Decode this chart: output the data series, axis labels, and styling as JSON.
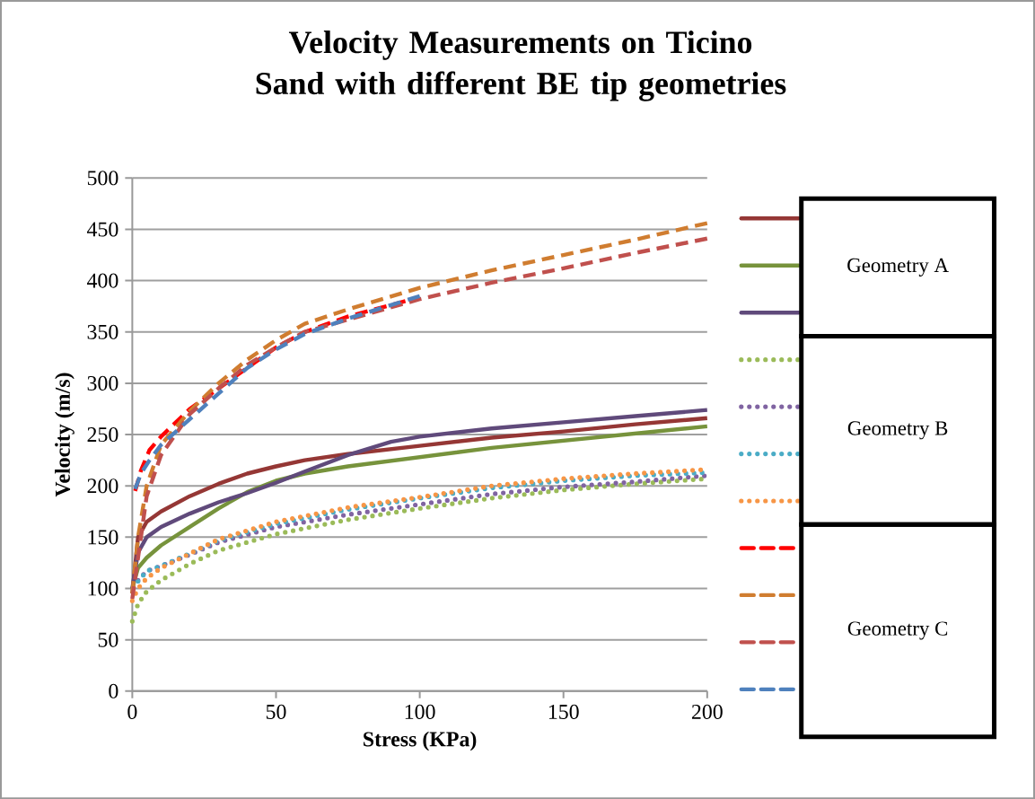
{
  "chart_data": {
    "type": "line",
    "title": "Velocity Measurements on Ticino Sand with different BE tip geometries",
    "xlabel": "Stress (KPa)",
    "ylabel": "Velocity (m/s)",
    "xlim": [
      0,
      200
    ],
    "xticks": [
      0,
      50,
      100,
      150,
      200
    ],
    "ylim": [
      0,
      500
    ],
    "yticks": [
      0,
      50,
      100,
      150,
      200,
      250,
      300,
      350,
      400,
      450,
      500
    ],
    "grid": "y",
    "marker": "none",
    "annotations": [
      "Geometry A",
      "Geometry B",
      "Geometry C"
    ],
    "series": [
      {
        "color": "#953735",
        "line_style": "solid",
        "x": [
          0,
          2,
          5,
          10,
          20,
          30,
          40,
          50,
          60,
          75,
          100,
          125,
          150,
          175,
          200
        ],
        "values": [
          95,
          150,
          165,
          175,
          190,
          202,
          212,
          219,
          225,
          231,
          239,
          247,
          253,
          260,
          266
        ]
      },
      {
        "color": "#77933c",
        "line_style": "solid",
        "x": [
          0,
          2,
          5,
          10,
          20,
          30,
          40,
          50,
          60,
          75,
          100,
          125,
          150,
          175,
          200
        ],
        "values": [
          100,
          120,
          130,
          142,
          160,
          178,
          194,
          205,
          212,
          219,
          228,
          237,
          244,
          251,
          258
        ]
      },
      {
        "color": "#604a7b",
        "line_style": "solid",
        "x": [
          0,
          2,
          5,
          10,
          20,
          30,
          40,
          50,
          60,
          75,
          90,
          100,
          125,
          150,
          175,
          200
        ],
        "values": [
          100,
          135,
          150,
          160,
          173,
          184,
          193,
          203,
          214,
          230,
          243,
          248,
          256,
          262,
          268,
          274
        ]
      },
      {
        "color": "#9bbb59",
        "line_style": "dotted",
        "x": [
          0,
          2,
          5,
          10,
          20,
          30,
          50,
          75,
          100,
          125,
          150,
          175,
          200
        ],
        "values": [
          68,
          85,
          97,
          108,
          124,
          137,
          153,
          167,
          178,
          188,
          196,
          202,
          207
        ]
      },
      {
        "color": "#8064a2",
        "line_style": "dotted",
        "x": [
          2,
          5,
          10,
          20,
          30,
          50,
          75,
          100,
          125,
          150,
          175,
          200
        ],
        "values": [
          108,
          117,
          122,
          133,
          145,
          160,
          172,
          182,
          192,
          199,
          204,
          210
        ]
      },
      {
        "color": "#4bacc6",
        "line_style": "dotted",
        "x": [
          2,
          5,
          10,
          20,
          30,
          50,
          75,
          100,
          125,
          150,
          175,
          200
        ],
        "values": [
          107,
          117,
          122,
          134,
          147,
          163,
          177,
          188,
          198,
          205,
          210,
          213
        ]
      },
      {
        "color": "#f79646",
        "line_style": "dotted",
        "x": [
          0,
          2,
          5,
          10,
          20,
          30,
          50,
          75,
          100,
          125,
          150,
          175,
          200
        ],
        "values": [
          88,
          100,
          110,
          120,
          134,
          148,
          165,
          179,
          189,
          200,
          207,
          212,
          216
        ]
      },
      {
        "color": "#ff0000",
        "line_style": "dashed",
        "x": [
          1,
          3,
          6,
          10,
          20,
          30,
          40,
          50,
          60,
          75,
          95
        ],
        "values": [
          195,
          215,
          235,
          248,
          275,
          295,
          315,
          335,
          350,
          365,
          380
        ]
      },
      {
        "color": "#d07d30",
        "line_style": "dashed",
        "x": [
          0,
          2,
          5,
          10,
          20,
          30,
          40,
          50,
          60,
          75,
          100,
          125,
          150,
          175,
          200
        ],
        "values": [
          95,
          150,
          200,
          240,
          273,
          300,
          323,
          342,
          358,
          372,
          393,
          410,
          425,
          440,
          456
        ]
      },
      {
        "color": "#c0504d",
        "line_style": "dashed",
        "x": [
          0,
          2,
          5,
          10,
          20,
          30,
          40,
          50,
          60,
          75,
          100,
          125,
          150,
          175,
          200
        ],
        "values": [
          90,
          130,
          190,
          230,
          270,
          295,
          318,
          335,
          350,
          362,
          382,
          398,
          412,
          427,
          441
        ]
      },
      {
        "color": "#4f81bd",
        "line_style": "dashed",
        "x": [
          1,
          3,
          6,
          10,
          20,
          30,
          40,
          50,
          60,
          75,
          100
        ],
        "values": [
          197,
          212,
          225,
          240,
          265,
          290,
          315,
          333,
          348,
          363,
          385
        ]
      }
    ]
  }
}
